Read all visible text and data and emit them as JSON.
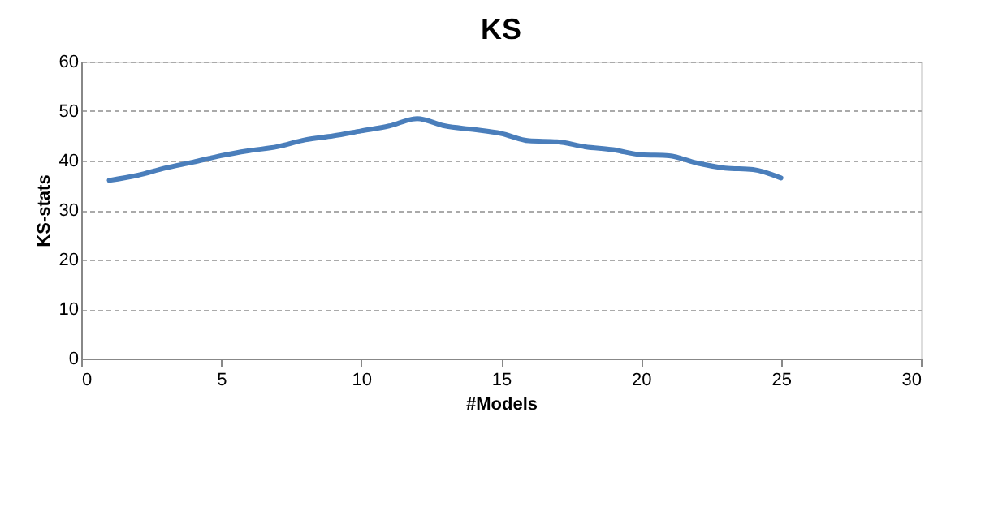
{
  "chart_data": {
    "type": "line",
    "title": "KS",
    "xlabel": "#Models",
    "ylabel": "KS-stats",
    "x": [
      1,
      2,
      3,
      4,
      5,
      6,
      7,
      8,
      9,
      10,
      11,
      12,
      13,
      14,
      15,
      16,
      17,
      18,
      19,
      20,
      21,
      22,
      23,
      24,
      25
    ],
    "series": [
      {
        "color": "#4a7ebb",
        "values": [
          36,
          37,
          38.5,
          39.7,
          41,
          42,
          42.8,
          44.2,
          45,
          46,
          47,
          48.5,
          47,
          46.3,
          45.5,
          44,
          43.8,
          42.8,
          42.2,
          41.2,
          41,
          39.5,
          38.5,
          38.2,
          36.5
        ]
      }
    ],
    "xlim": [
      0,
      30
    ],
    "xticks": [
      0,
      5,
      10,
      15,
      20,
      25,
      30
    ],
    "ylim": [
      0,
      60
    ],
    "yticks": [
      0,
      10,
      20,
      30,
      40,
      50,
      60
    ],
    "grid": "y",
    "legend": false,
    "marker": "none",
    "line_style": "solid"
  }
}
